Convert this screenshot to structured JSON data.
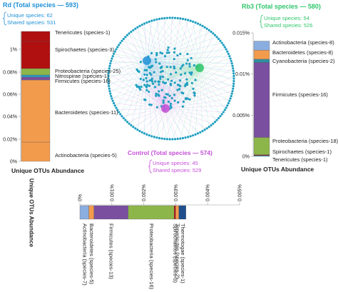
{
  "colors": {
    "rd": "#1e90d6",
    "rb3": "#2ec66a",
    "control": "#c44fd6",
    "node": "#1f9fc0"
  },
  "rd": {
    "title": "Rd (Total species — 593)",
    "unique": "Unique species: 62",
    "shared": "Shared species: 531",
    "ticks": [
      "1%",
      "0.08%",
      "0.06%",
      "0.04%",
      "0.02%",
      "0%"
    ],
    "axis_title": "Unique OTUs Abundance",
    "segments": [
      {
        "label": "Actinobacteria (species-5)",
        "color": "#f39b4d",
        "value": 0.04
      },
      {
        "label": "Bacteroidetes (species-11)",
        "color": "#f39b4d",
        "value": 0.017
      },
      {
        "label": "Firmicutes (species-16)",
        "color": "#7a4fa0",
        "value": 0.002
      },
      {
        "label": "Nitrospirae (species-1)",
        "color": "#2f9bc4",
        "value": 0.001
      },
      {
        "label": "Proteobacteria (species-25)",
        "color": "#8db64a",
        "value": 0.004
      },
      {
        "label": "Spirochaetes (species-3)",
        "color": "#b01010",
        "value": 0.3
      },
      {
        "label": "Tenericutes (species-1)",
        "color": "#b01010",
        "value": 0.1
      }
    ]
  },
  "rb3": {
    "title": "Rb3 (Total species — 580)",
    "unique": "Unique species: 54",
    "shared": "Shared species: 526",
    "ticks": [
      "0.015%",
      "0.01%",
      "0.005%",
      "0%"
    ],
    "axis_title": "Unique OTUs Abundance",
    "segments": [
      {
        "label": "Tenericutes (species-1)",
        "color": "#2f9bc4",
        "value": 0.0001
      },
      {
        "label": "Spirochaetes (species-1)",
        "color": "#b01010",
        "value": 0.0001
      },
      {
        "label": "Proteobacteria (species-18)",
        "color": "#8db64a",
        "value": 0.0021
      },
      {
        "label": "Firmicutes (species-16)",
        "color": "#7a4fa0",
        "value": 0.0091
      },
      {
        "label": "Cyanobacteria (species-2)",
        "color": "#2f8fa0",
        "value": 0.0004
      },
      {
        "label": "Bacteroidetes (species-8)",
        "color": "#f39b4d",
        "value": 0.0011
      },
      {
        "label": "Actinobacteria (species-8)",
        "color": "#8aaee0",
        "value": 0.0011
      }
    ]
  },
  "control": {
    "title": "Control (Total species — 574)",
    "unique": "Unique species: 45",
    "shared": "Shared species: 529",
    "axis_title": "Unique OTUs Abundance",
    "ticks": [
      "0%",
      "0.001%",
      "0.002%",
      "0.003%",
      "0.004%",
      "0.005%"
    ],
    "segments": [
      {
        "label": "Actinobacteria (species-7)",
        "color": "#8aaee0",
        "value": 0.00028
      },
      {
        "label": "Bacteroidetes (species-5)",
        "color": "#f39b4d",
        "value": 0.00016
      },
      {
        "label": "Firmicutes (species-13)",
        "color": "#7a4fa0",
        "value": 0.00107
      },
      {
        "label": "Proteobacteria (species-16)",
        "color": "#8db64a",
        "value": 0.00144
      },
      {
        "label": "Spirochaetes (species-3)",
        "color": "#b01010",
        "value": 5e-05
      },
      {
        "label": "Tenericutes (species-2)",
        "color": "#f39b4d",
        "value": 0.0001
      },
      {
        "label": "Thermotogae (species-1)",
        "color": "#1f4e8c",
        "value": 0.00022
      }
    ]
  }
}
